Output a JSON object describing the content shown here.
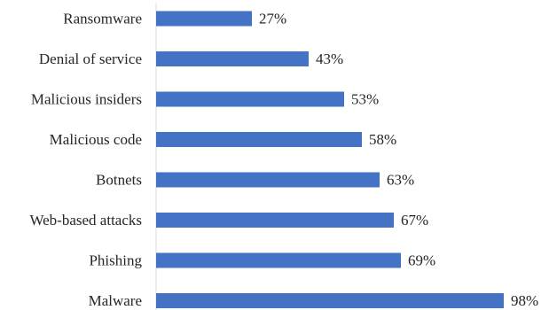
{
  "chart_data": {
    "type": "bar",
    "orientation": "horizontal",
    "categories": [
      "Ransomware",
      "Denial of service",
      "Malicious insiders",
      "Malicious code",
      "Botnets",
      "Web-based attacks",
      "Phishing",
      "Malware"
    ],
    "values": [
      27,
      43,
      53,
      58,
      63,
      67,
      69,
      98
    ],
    "value_labels": [
      "27%",
      "43%",
      "53%",
      "58%",
      "63%",
      "67%",
      "69%",
      "98%"
    ],
    "xlim": [
      0,
      100
    ],
    "grid": false,
    "legend": "none",
    "bar_color": "#4472c4"
  }
}
